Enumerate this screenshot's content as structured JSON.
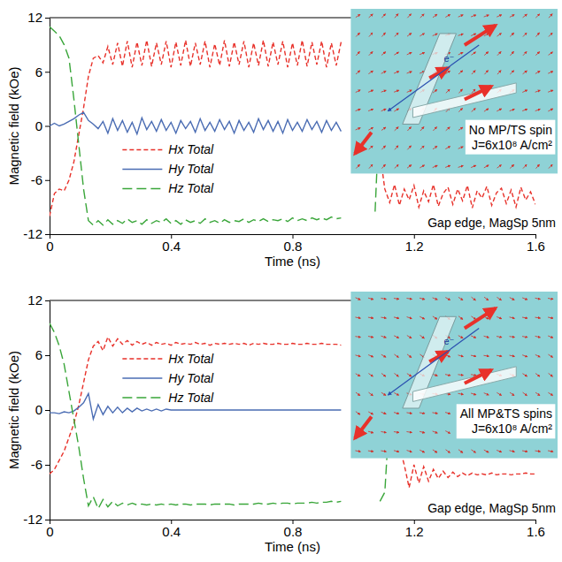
{
  "chart_data": [
    {
      "type": "line",
      "xlabel": "Time (ns)",
      "ylabel": "Magnetic field (kOe)",
      "xlim": [
        0,
        1.6
      ],
      "xticks": [
        0,
        0.4,
        0.8,
        1.2,
        1.6
      ],
      "ylim": [
        -12,
        12
      ],
      "yticks": [
        -12,
        -6,
        0,
        6,
        12
      ],
      "legend": "lower left",
      "annotations": [
        "No MP/TS spin",
        "J=6x10⁸ A/cm²",
        "Gap edge, MagSp 5nm",
        "e⁻"
      ],
      "x": [
        0,
        0.016,
        0.032,
        0.048,
        0.064,
        0.08,
        0.096,
        0.112,
        0.128,
        0.144,
        0.16,
        0.176,
        0.192,
        0.208,
        0.224,
        0.24,
        0.256,
        0.272,
        0.288,
        0.304,
        0.32,
        0.336,
        0.352,
        0.368,
        0.384,
        0.4,
        0.416,
        0.432,
        0.448,
        0.464,
        0.48,
        0.496,
        0.512,
        0.528,
        0.544,
        0.56,
        0.576,
        0.592,
        0.608,
        0.624,
        0.64,
        0.656,
        0.672,
        0.688,
        0.704,
        0.72,
        0.736,
        0.752,
        0.768,
        0.784,
        0.8,
        0.816,
        0.832,
        0.848,
        0.864,
        0.88,
        0.896,
        0.912,
        0.928,
        0.944,
        0.96,
        0.976,
        0.992,
        1.008,
        1.024,
        1.04,
        1.056,
        1.072,
        1.088,
        1.104,
        1.12,
        1.136,
        1.152,
        1.168,
        1.184,
        1.2,
        1.216,
        1.232,
        1.248,
        1.264,
        1.28,
        1.296,
        1.312,
        1.328,
        1.344,
        1.36,
        1.376,
        1.392,
        1.408,
        1.424,
        1.44,
        1.456,
        1.472,
        1.488,
        1.504,
        1.52,
        1.536,
        1.552,
        1.568,
        1.584,
        1.6
      ],
      "series": [
        {
          "name": "Hx Total",
          "color": "#e8312a",
          "line_style": "dash",
          "values": [
            -10,
            -7.5,
            -7,
            -7.2,
            -6,
            -4,
            -1,
            2,
            5.5,
            7.5,
            7.8,
            7,
            8.8,
            6.8,
            9.2,
            6.6,
            9.4,
            6.5,
            9.3,
            6.7,
            9.5,
            6.6,
            9.2,
            6.8,
            9.4,
            6.5,
            9.3,
            6.7,
            9.5,
            6.6,
            9.2,
            6.8,
            9.4,
            6.5,
            9.1,
            6.7,
            9.5,
            6.6,
            9.3,
            6.8,
            9.4,
            6.5,
            9.2,
            6.7,
            9.5,
            6.6,
            9.3,
            6.8,
            9.4,
            6.5,
            9.2,
            6.7,
            9.5,
            6.6,
            9.3,
            6.8,
            9.4,
            6.5,
            9.2,
            6.7,
            9.3,
            null,
            null,
            null,
            null,
            null,
            null,
            null,
            -3,
            -7,
            -8.5,
            -6.5,
            -8.8,
            -7,
            -8.2,
            -6.6,
            -9,
            -7.2,
            -8.4,
            -6.5,
            -8.9,
            -7.5,
            -6.8,
            -8.7,
            -7,
            -8.3,
            -6.6,
            -9.1,
            -7.2,
            -8,
            -6.7,
            -8.8,
            -7.4,
            -6.9,
            -8.6,
            -7.1,
            -9,
            -6.8,
            -8.2,
            -7.3,
            -8.7
          ]
        },
        {
          "name": "Hy Total",
          "color": "#4a6cb3",
          "line_style": "solid",
          "values": [
            0,
            0.3,
            0,
            0.2,
            0.5,
            0.8,
            1.2,
            1.5,
            0.6,
            0.2,
            -0.3,
            0.5,
            -0.8,
            0.8,
            -0.5,
            0.6,
            -0.7,
            0.4,
            -0.9,
            0.9,
            -0.4,
            0.5,
            -0.6,
            0.7,
            -0.5,
            0.4,
            -0.8,
            0.6,
            -0.3,
            0.5,
            -0.7,
            0.8,
            -0.5,
            0.4,
            -0.6,
            0.7,
            -0.4,
            0.5,
            -0.8,
            0.6,
            -0.5,
            0.4,
            -0.7,
            0.8,
            -0.4,
            0.6,
            -0.6,
            0.5,
            -0.8,
            0.7,
            -0.5,
            0.4,
            -0.6,
            0.7,
            -0.4,
            0.5,
            -0.7,
            0.6,
            -0.5,
            0.4,
            -0.6,
            null,
            null,
            null,
            null,
            null,
            null,
            null,
            null,
            null,
            null,
            null,
            null,
            null,
            null,
            null,
            null,
            null,
            null,
            null,
            null,
            null,
            null,
            null,
            null,
            null,
            null,
            null,
            null,
            null,
            null,
            null,
            null,
            null,
            null,
            null,
            null,
            null,
            null,
            null,
            null
          ]
        },
        {
          "name": "Hz Total",
          "color": "#3aa63a",
          "line_style": "longdash",
          "values": [
            11,
            10.5,
            10,
            9,
            7.5,
            3,
            -2,
            -7,
            -10.5,
            -11,
            -10.5,
            -11,
            -10.4,
            -10.9,
            -10.5,
            -10.8,
            -10.3,
            -10.7,
            -10.5,
            -10.9,
            -10.4,
            -10.8,
            -10.5,
            -10.7,
            -10.3,
            -10.8,
            -10.5,
            -10.9,
            -10.4,
            -10.7,
            -10.5,
            -10.8,
            -10.3,
            -10.7,
            -10.5,
            -10.8,
            -10.4,
            -10.7,
            -10.5,
            -10.6,
            -10.3,
            -10.7,
            -10.4,
            -10.6,
            -10.3,
            -10.6,
            -10.4,
            -10.5,
            -10.3,
            -10.6,
            -10.2,
            -10.5,
            -10.3,
            -10.5,
            -10.2,
            -10.4,
            -10.2,
            -10.4,
            -10.1,
            -10.3,
            -10.2,
            null,
            null,
            null,
            null,
            null,
            null,
            -9.5,
            3,
            null,
            null,
            null,
            null,
            null,
            null,
            null,
            null,
            null,
            null,
            null,
            null,
            null,
            null,
            null,
            null,
            null,
            null,
            null,
            null,
            null,
            null,
            null,
            null,
            null,
            null,
            null,
            null,
            null,
            null,
            null,
            null
          ]
        }
      ]
    },
    {
      "type": "line",
      "xlabel": "Time (ns)",
      "ylabel": "Magnetic field (kOe)",
      "xlim": [
        0,
        1.6
      ],
      "xticks": [
        0,
        0.4,
        0.8,
        1.2,
        1.6
      ],
      "ylim": [
        -12,
        12
      ],
      "yticks": [
        -12,
        -6,
        0,
        6,
        12
      ],
      "legend": "upper left",
      "annotations": [
        "All MP&TS spins",
        "J=6x10⁸ A/cm²",
        "Gap edge, MagSp 5nm",
        "e⁻"
      ],
      "x": [
        0,
        0.016,
        0.032,
        0.048,
        0.064,
        0.08,
        0.096,
        0.112,
        0.128,
        0.144,
        0.16,
        0.176,
        0.192,
        0.208,
        0.224,
        0.24,
        0.256,
        0.272,
        0.288,
        0.304,
        0.32,
        0.336,
        0.352,
        0.368,
        0.384,
        0.4,
        0.416,
        0.432,
        0.448,
        0.464,
        0.48,
        0.496,
        0.512,
        0.528,
        0.544,
        0.56,
        0.576,
        0.592,
        0.608,
        0.624,
        0.64,
        0.656,
        0.672,
        0.688,
        0.704,
        0.72,
        0.736,
        0.752,
        0.768,
        0.784,
        0.8,
        0.816,
        0.832,
        0.848,
        0.864,
        0.88,
        0.896,
        0.912,
        0.928,
        0.944,
        0.96,
        0.976,
        0.992,
        1.008,
        1.024,
        1.04,
        1.056,
        1.072,
        1.088,
        1.104,
        1.12,
        1.136,
        1.152,
        1.168,
        1.184,
        1.2,
        1.216,
        1.232,
        1.248,
        1.264,
        1.28,
        1.296,
        1.312,
        1.328,
        1.344,
        1.36,
        1.376,
        1.392,
        1.408,
        1.424,
        1.44,
        1.456,
        1.472,
        1.488,
        1.504,
        1.52,
        1.536,
        1.552,
        1.568,
        1.584,
        1.6
      ],
      "series": [
        {
          "name": "Hx Total",
          "color": "#e8312a",
          "line_style": "dash",
          "values": [
            -7,
            -6.5,
            -5.5,
            -4.5,
            -3,
            -1.5,
            0.5,
            3,
            5.5,
            7,
            7.5,
            6.5,
            8,
            7,
            7.8,
            7.2,
            7.6,
            7.1,
            7.5,
            7.2,
            7.4,
            7.1,
            7.4,
            7.2,
            7.3,
            7.1,
            7.4,
            7.2,
            7.3,
            7.2,
            7.4,
            7.2,
            7.3,
            7.1,
            7.3,
            7.2,
            7.3,
            7.2,
            7.3,
            7.2,
            7.3,
            7.1,
            7.3,
            7.2,
            7.3,
            7.2,
            7.2,
            7.3,
            7.2,
            7.2,
            7.3,
            7.2,
            7.2,
            7.3,
            7.2,
            7.2,
            7.3,
            7.2,
            7.2,
            7.2,
            7.1,
            null,
            null,
            null,
            null,
            null,
            null,
            null,
            null,
            null,
            null,
            null,
            -4,
            -6,
            -8.5,
            -6,
            -8,
            -6.2,
            -7.8,
            -6.5,
            -7.5,
            -6.7,
            -7.4,
            -6.8,
            -7.3,
            -6.9,
            -7.2,
            -6.9,
            -7.1,
            -7,
            -7.1,
            -6.9,
            -7.1,
            -7,
            -7,
            -7.1,
            -7,
            -7,
            -6.9,
            -7,
            -7
          ]
        },
        {
          "name": "Hy Total",
          "color": "#4a6cb3",
          "line_style": "solid",
          "values": [
            -0.3,
            -0.3,
            -0.4,
            -0.2,
            -0.3,
            -0.1,
            0.3,
            0.8,
            1.8,
            -1,
            0.6,
            -0.5,
            0.4,
            -0.3,
            0.3,
            -0.3,
            0.2,
            -0.2,
            0.2,
            -0.1,
            0.1,
            -0.1,
            0.1,
            -0.1,
            0.1,
            0,
            0,
            0,
            0,
            0,
            0,
            0,
            0,
            0,
            0,
            0,
            0,
            0,
            0,
            0,
            0,
            0,
            0,
            0,
            0,
            0,
            0,
            0,
            0,
            0,
            0,
            0,
            0,
            0,
            0,
            0,
            0,
            0,
            0,
            0,
            0,
            null,
            null,
            null,
            null,
            null,
            null,
            null,
            null,
            null,
            null,
            null,
            null,
            null,
            null,
            null,
            null,
            null,
            null,
            null,
            null,
            null,
            null,
            null,
            null,
            null,
            null,
            null,
            null,
            null,
            null,
            null,
            null,
            null,
            null,
            null,
            null,
            null,
            null,
            null,
            null
          ]
        },
        {
          "name": "Hz Total",
          "color": "#3aa63a",
          "line_style": "longdash",
          "values": [
            9.5,
            8.5,
            7,
            5,
            2,
            -1,
            -4,
            -7.5,
            -10.5,
            -9.5,
            -10.8,
            -9.8,
            -10.6,
            -10,
            -10.5,
            -10.2,
            -10.4,
            -10.2,
            -10.4,
            -10.3,
            -10.4,
            -10.3,
            -10.4,
            -10.3,
            -10.4,
            -10.3,
            -10.4,
            -10.3,
            -10.3,
            -10.4,
            -10.3,
            -10.3,
            -10.3,
            -10.4,
            -10.3,
            -10.3,
            -10.3,
            -10.3,
            -10.4,
            -10.3,
            -10.3,
            -10.3,
            -10.3,
            -10.2,
            -10.3,
            -10.3,
            -10.2,
            -10.3,
            -10.2,
            -10.2,
            -10.3,
            -10.2,
            -10.2,
            -10.2,
            -10.1,
            -10.2,
            -10.1,
            -10.1,
            -10,
            -10.1,
            -10,
            null,
            null,
            null,
            null,
            null,
            null,
            null,
            -10,
            -9,
            0,
            null,
            null,
            null,
            null,
            null,
            null,
            null,
            null,
            null,
            null,
            null,
            null,
            null,
            null,
            null,
            null,
            null,
            null,
            null,
            null,
            null,
            null,
            null,
            null,
            null,
            null,
            null,
            null,
            null,
            null
          ]
        }
      ]
    }
  ]
}
